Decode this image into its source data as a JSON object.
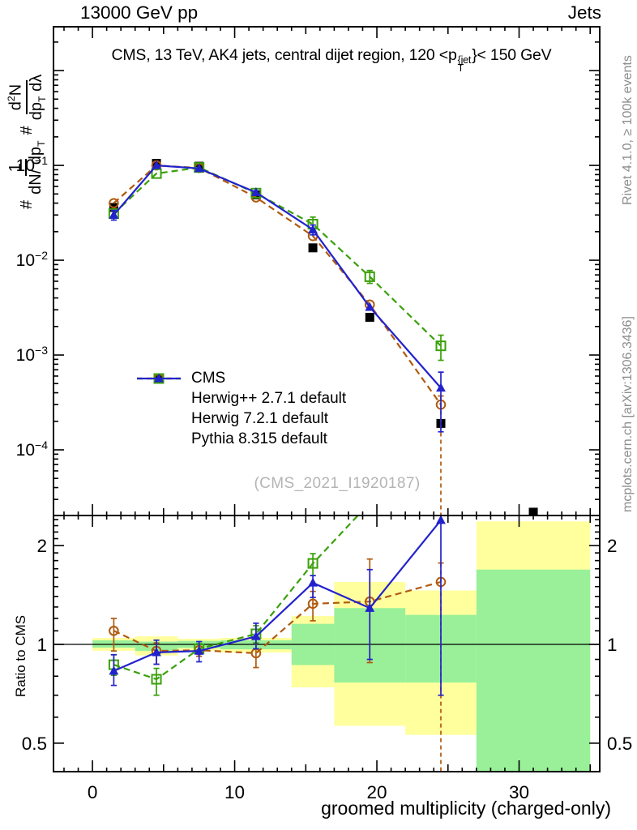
{
  "header": {
    "left": "13000 GeV pp",
    "right": "Jets"
  },
  "panel_title": {
    "t1": "CMS, 13 TeV, AK4 jets, central dijet region, 120 <p",
    "sup": "{jet",
    "sub": "T",
    "t2": "}< 150 GeV"
  },
  "ylabel": {
    "h1": "#",
    "f1n": "1",
    "f1d": "dN/ dp",
    "f1dsub": "T",
    "h2": "#",
    "f2na": "d",
    "f2nsup": "2",
    "f2nb": "N",
    "f2da": "dp",
    "f2dsub": "T",
    "f2db": " dλ"
  },
  "right_margin": {
    "top": "Rivet 4.1.0, ≥ 100k events",
    "bottom": "mcplots.cern.ch [arXiv:1306.3436]"
  },
  "watermark": "(CMS_2021_I1920187)",
  "colors": {
    "cms": "#000000",
    "herwigpp": "#b05a10",
    "herwig7": "#3aa00a",
    "pythia": "#2222cc",
    "band_yellow": "#ffff9e",
    "band_green": "#99f099",
    "muted_text": "#8c8c8c",
    "watermark": "#b4b4b4"
  },
  "legend": {
    "items": [
      {
        "label": "CMS",
        "marker": "square-filled",
        "line": "none",
        "color": "#000000"
      },
      {
        "label": "Herwig++ 2.7.1 default",
        "marker": "circle-open",
        "line": "dashed",
        "color": "#b05a10"
      },
      {
        "label": "Herwig 7.2.1 default",
        "marker": "square-open",
        "line": "dashed",
        "color": "#3aa00a"
      },
      {
        "label": "Pythia 8.315 default",
        "marker": "triangle-filled",
        "line": "solid",
        "color": "#2222cc"
      }
    ]
  },
  "chart_data": {
    "type": "line",
    "xlabel": "groomed multiplicity (charged-only)",
    "x": [
      1.5,
      4.5,
      7.5,
      11.5,
      15.5,
      19.5,
      24.5,
      31
    ],
    "bin_edges": [
      0,
      3,
      6,
      9,
      14,
      17,
      22,
      27,
      35
    ],
    "xlim": [
      -2.74,
      35.67
    ],
    "xtick_values": [
      0,
      10,
      20,
      30
    ],
    "xtick_labels": [
      "0",
      "10",
      "20",
      "30"
    ],
    "main": {
      "yscale": "log",
      "ylim": [
        2.03e-05,
        2.9
      ],
      "ytick_exponents": [
        -1,
        -2,
        -3,
        -4
      ],
      "series": [
        {
          "key": "cms",
          "name": "CMS",
          "marker": "square-filled",
          "style": "none",
          "color": "#000000",
          "values": [
            0.036,
            0.105,
            0.098,
            0.049,
            0.0135,
            0.0025,
            0.00019,
            2.2e-05
          ],
          "err": {}
        },
        {
          "key": "herwigpp",
          "name": "Herwig++ 2.7.1 default",
          "marker": "circle-open",
          "style": "dashed",
          "color": "#b05a10",
          "values": [
            0.04,
            0.1,
            0.094,
            0.046,
            0.018,
            0.0034,
            0.0003,
            null
          ],
          "err": {
            "6": [
              1.5e-05,
              0.00037
            ]
          },
          "err_dashed": [
            6
          ]
        },
        {
          "key": "herwig7",
          "name": "Herwig 7.2.1 default",
          "marker": "square-open",
          "style": "dashed",
          "color": "#3aa00a",
          "values": [
            0.031,
            0.082,
            0.095,
            0.051,
            0.024,
            0.0067,
            0.00125,
            null
          ],
          "err": {
            "4": [
              0.0205,
              0.0285
            ],
            "5": [
              0.0057,
              0.0078
            ],
            "6": [
              0.00088,
              0.00162
            ]
          }
        },
        {
          "key": "pythia",
          "name": "Pythia 8.315 default",
          "marker": "triangle-filled",
          "style": "solid",
          "color": "#2222cc",
          "values": [
            0.03,
            0.1,
            0.093,
            0.052,
            0.021,
            0.0032,
            0.00045,
            null
          ],
          "err": {
            "0": [
              0.0265,
              0.0335
            ],
            "4": [
              0.0185,
              0.0235
            ],
            "6": [
              0.000155,
              0.00066
            ]
          }
        }
      ]
    },
    "ratio": {
      "ylabel": "Ratio to CMS",
      "yscale": "log",
      "ylim": [
        0.4095,
        2.47
      ],
      "ytick_values": [
        2,
        1,
        0.5
      ],
      "ytick_labels": [
        "2",
        "1",
        "0.5"
      ],
      "bands": [
        {
          "x": [
            0,
            3
          ],
          "yellow": [
            0.956,
            1.046
          ],
          "green": [
            0.977,
            1.029
          ]
        },
        {
          "x": [
            3,
            6
          ],
          "yellow": [
            0.925,
            1.058
          ],
          "green": [
            0.955,
            1.02
          ]
        },
        {
          "x": [
            6,
            9
          ],
          "yellow": [
            0.956,
            1.04
          ],
          "green": [
            0.975,
            1.025
          ]
        },
        {
          "x": [
            9,
            14
          ],
          "yellow": [
            0.945,
            1.047
          ],
          "green": [
            0.966,
            1.029
          ]
        },
        {
          "x": [
            14,
            17
          ],
          "yellow": [
            0.74,
            1.22
          ],
          "green": [
            0.865,
            1.155
          ]
        },
        {
          "x": [
            17,
            22
          ],
          "yellow": [
            0.565,
            1.55
          ],
          "green": [
            0.765,
            1.29
          ]
        },
        {
          "x": [
            22,
            27
          ],
          "yellow": [
            0.53,
            1.46
          ],
          "green": [
            0.765,
            1.23
          ]
        },
        {
          "x": [
            27,
            35
          ],
          "yellow": [
            0.25,
            2.37
          ],
          "green": [
            0.25,
            1.69
          ]
        }
      ],
      "series": [
        {
          "key": "herwigpp",
          "name": "Herwig++ 2.7.1 default",
          "marker": "circle-open",
          "style": "dashed",
          "color": "#b05a10",
          "values": [
            1.1,
            0.955,
            0.96,
            0.94,
            1.33,
            1.35,
            1.55,
            null
          ],
          "err": {
            "0": [
              0.955,
              1.2
            ],
            "1": [
              0.87,
              1.01
            ],
            "2": [
              0.92,
              1.0
            ],
            "3": [
              0.85,
              1.01
            ],
            "4": [
              1.18,
              1.45
            ],
            "5": [
              0.88,
              1.82
            ],
            "6": [
              0.27,
              1.77
            ]
          },
          "err_dashed": [
            6
          ]
        },
        {
          "key": "herwig7",
          "name": "Herwig 7.2.1 default",
          "marker": "square-open",
          "style": "dashed",
          "color": "#3aa00a",
          "values": [
            0.867,
            0.783,
            0.97,
            1.077,
            1.765,
            2.7,
            6.5,
            null
          ],
          "err": {
            "0": [
              0.805,
              0.93
            ],
            "1": [
              0.7,
              0.845
            ],
            "2": [
              0.94,
              1.005
            ],
            "3": [
              1.01,
              1.14
            ],
            "4": [
              1.62,
              1.89
            ]
          }
        },
        {
          "key": "pythia",
          "name": "Pythia 8.315 default",
          "marker": "triangle-filled",
          "style": "solid",
          "color": "#2222cc",
          "values": [
            0.83,
            0.945,
            0.955,
            1.058,
            1.54,
            1.29,
            2.39,
            null
          ],
          "err": {
            "0": [
              0.75,
              0.93
            ],
            "1": [
              0.87,
              1.03
            ],
            "2": [
              0.885,
              1.02
            ],
            "3": [
              0.97,
              1.16
            ],
            "4": [
              1.39,
              1.62
            ],
            "5": [
              0.9,
              1.69
            ],
            "6": [
              0.7,
              3.0
            ]
          }
        }
      ]
    }
  }
}
